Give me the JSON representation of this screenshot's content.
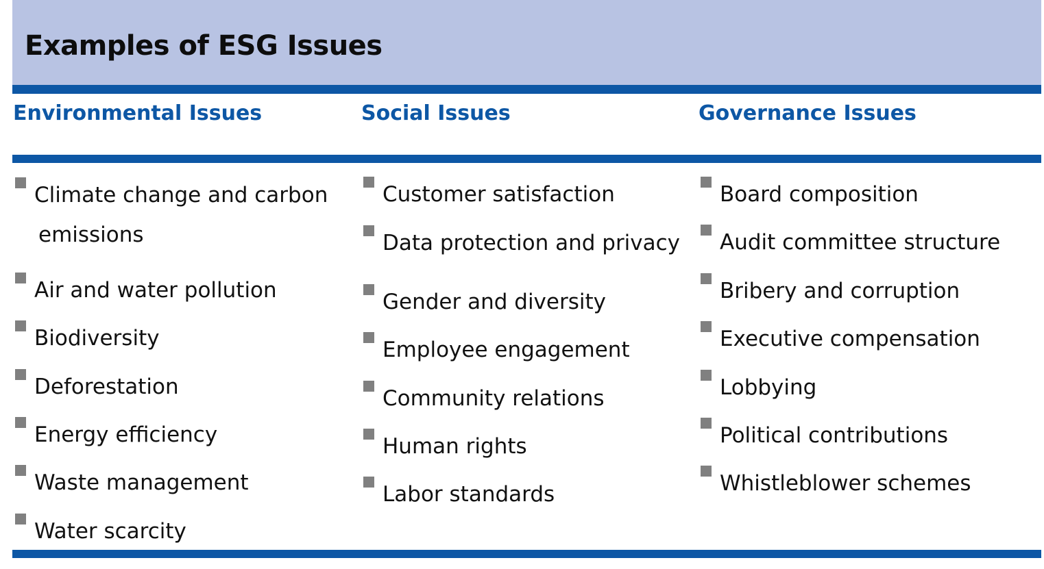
{
  "title": "Examples of ESG Issues",
  "columns": [
    {
      "heading": "Environmental Issues",
      "items": [
        "Climate change and carbon",
        "emissions",
        "Air and water pollution",
        "Biodiversity",
        "Deforestation",
        "Energy efficiency",
        "Waste management",
        "Water scarcity"
      ]
    },
    {
      "heading": "Social Issues",
      "items": [
        "Customer satisfaction",
        "Data protection and privacy",
        "Gender and diversity",
        "Employee engagement",
        "Community relations",
        "Human rights",
        "Labor standards"
      ]
    },
    {
      "heading": "Governance Issues",
      "items": [
        "Board composition",
        "Audit committee structure",
        "Bribery and corruption",
        "Executive compensation",
        "Lobbying",
        "Political contributions",
        "Whistleblower schemes"
      ]
    }
  ],
  "colors": {
    "band": "#b8c3e3",
    "rule": "#0d57a5",
    "bullet": "#808080"
  }
}
